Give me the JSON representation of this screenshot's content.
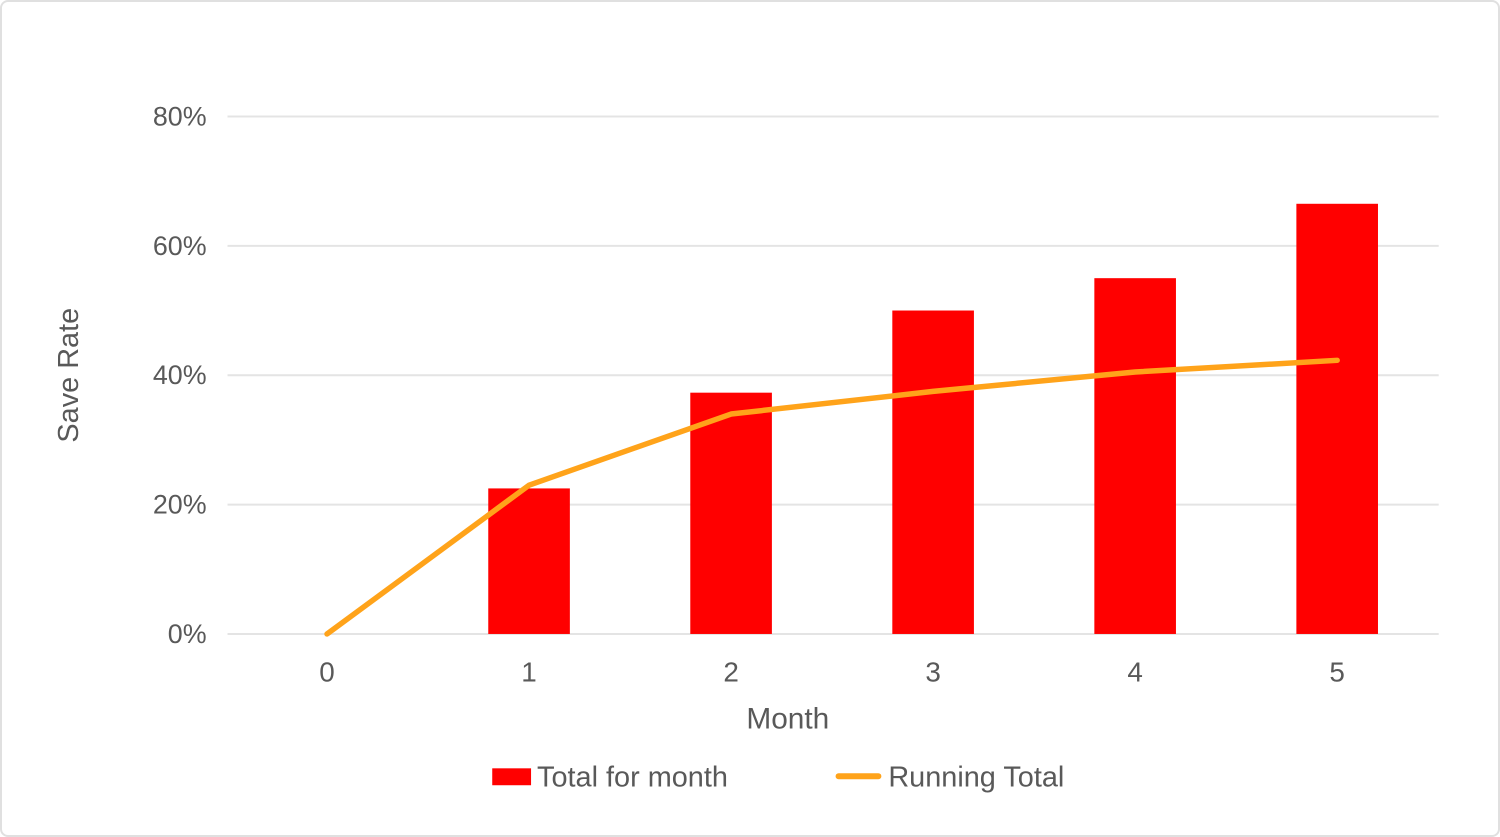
{
  "chart_data": {
    "type": "combo-bar-line",
    "title": "",
    "xlabel": "Month",
    "ylabel": "Save Rate",
    "x": [
      0,
      1,
      2,
      3,
      4,
      5
    ],
    "xtick_labels": [
      "0",
      "1",
      "2",
      "3",
      "4",
      "5"
    ],
    "yticks": [
      0,
      20,
      40,
      60,
      80
    ],
    "ytick_labels": [
      "0%",
      "20%",
      "40%",
      "60%",
      "80%"
    ],
    "ylim": [
      0,
      80
    ],
    "grid": true,
    "legend_position": "bottom",
    "series": [
      {
        "name": "Total for month",
        "type": "bar",
        "color": "#ff0000",
        "values": [
          null,
          22.5,
          37.3,
          50,
          55,
          66.5
        ]
      },
      {
        "name": "Running Total",
        "type": "line",
        "color": "#ffa31a",
        "values": [
          0,
          23,
          34,
          37.5,
          40.5,
          42.3
        ]
      }
    ],
    "colors": {
      "grid": "#e4e4e4",
      "text": "#595959",
      "background": "#ffffff"
    }
  }
}
